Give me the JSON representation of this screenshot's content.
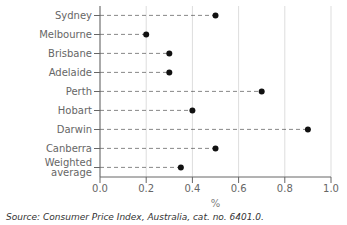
{
  "chart_data": {
    "type": "lollipop",
    "orientation": "horizontal",
    "categories": [
      "Sydney",
      "Melbourne",
      "Brisbane",
      "Adelaide",
      "Perth",
      "Hobart",
      "Darwin",
      "Canberra",
      "Weighted average"
    ],
    "values": [
      0.5,
      0.2,
      0.3,
      0.3,
      0.7,
      0.4,
      0.9,
      0.5,
      0.35
    ],
    "xlim": [
      0.0,
      1.0
    ],
    "xticks": [
      {
        "value": 0.0,
        "label": "0.0"
      },
      0.2,
      0.4,
      0.6,
      0.8,
      {
        "value": 1.0,
        "label": "1.0"
      }
    ],
    "xlabel": "%",
    "annotations": [
      "Source: Consumer Price Index, Australia, cat. no. 6401.0."
    ],
    "grid": true,
    "color": "#111111",
    "line_style": "dashed"
  }
}
